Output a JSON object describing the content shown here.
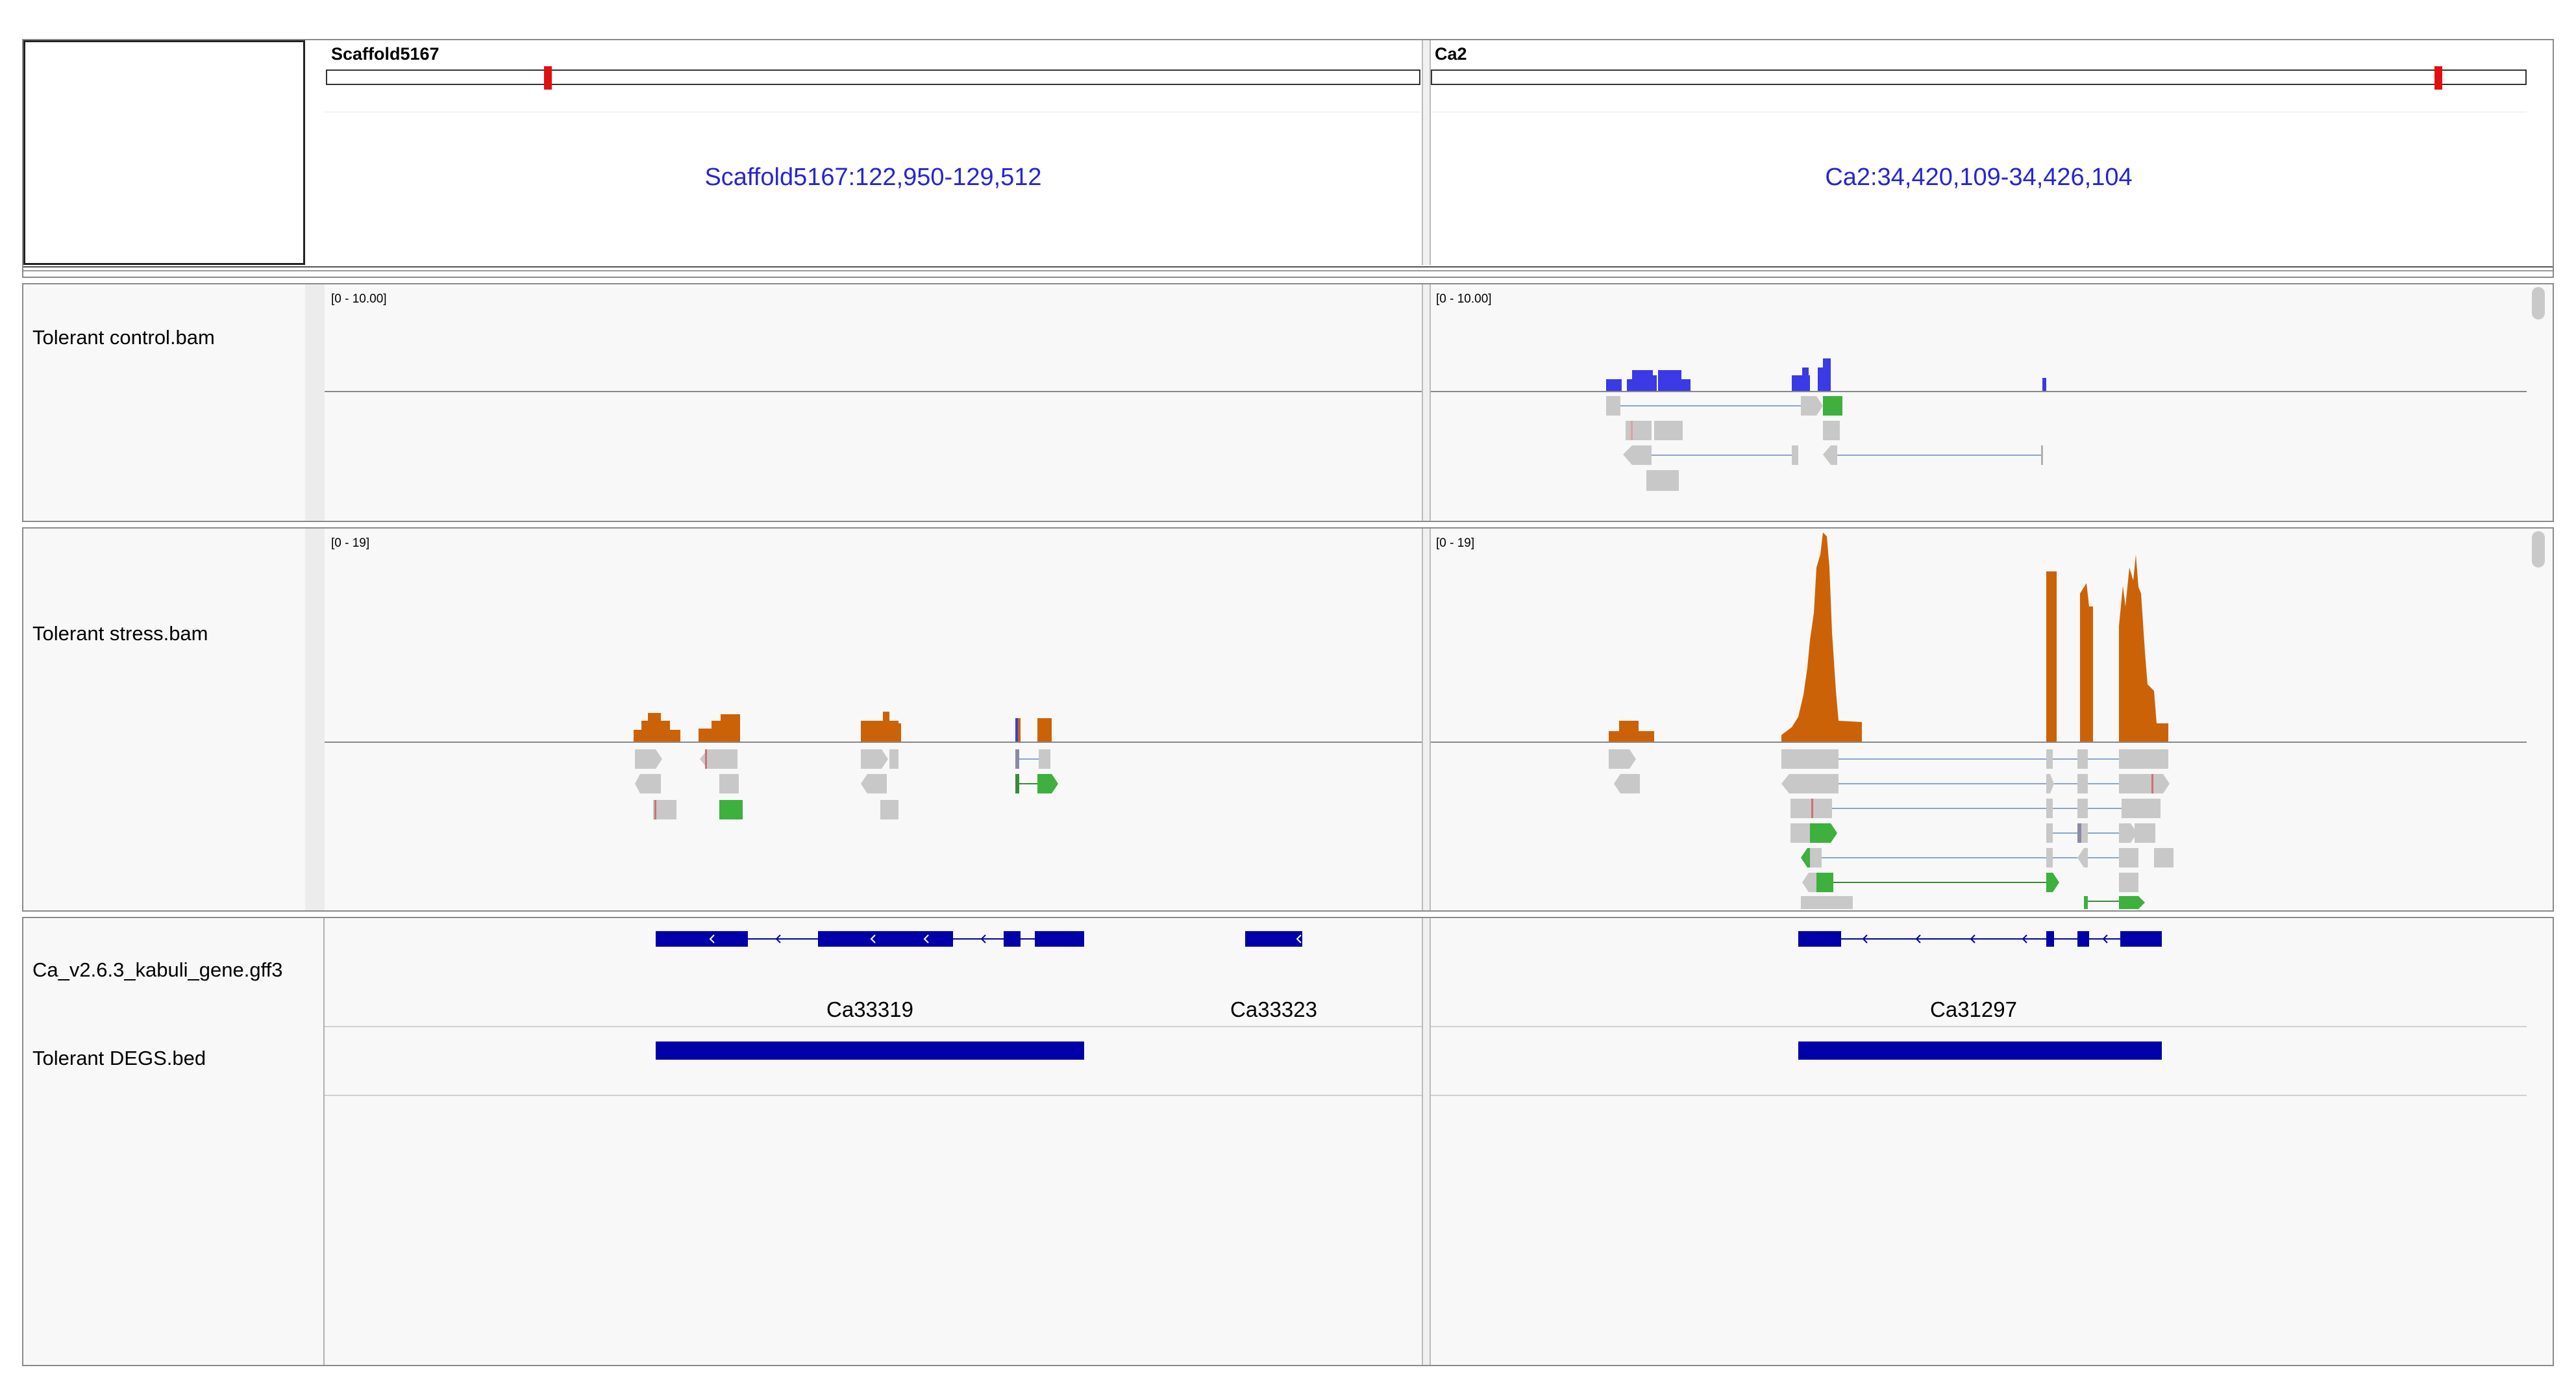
{
  "panels": [
    {
      "chromosome": "Scaffold5167",
      "locus": "Scaffold5167:122,950-129,512",
      "control_range": "[0 - 10.00]",
      "stress_range": "[0 - 19]",
      "genes": [
        "Ca33319",
        "Ca33323"
      ]
    },
    {
      "chromosome": "Ca2",
      "locus": "Ca2:34,420,109-34,426,104",
      "control_range": "[0 - 10.00]",
      "stress_range": "[0 - 19]",
      "genes": [
        "Ca31297"
      ]
    }
  ],
  "tracks": {
    "control": "Tolerant control.bam",
    "stress": "Tolerant stress.bam",
    "gff": "Ca_v2.6.3_kabuli_gene.gff3",
    "bed": "Tolerant DEGS.bed"
  },
  "colors": {
    "control_coverage": "#3a3ae6",
    "stress_coverage": "#cc6207",
    "feature": "#0000a8",
    "read": "#c8c8c8",
    "read_highlight": "#3db03d",
    "ideogram_marker": "#e01010"
  }
}
